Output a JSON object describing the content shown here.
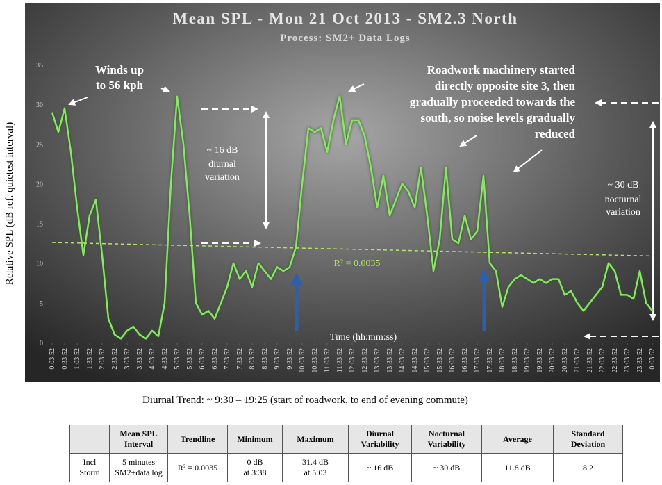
{
  "chart_data": {
    "type": "line",
    "title": "Mean SPL - Mon 21 Oct 2013 - SM2.3 North",
    "subtitle": "Process:  SM2+ Data Logs",
    "y_label": "Relative SPL (dB ref. quietest interval)",
    "x_label": "Time (hh:mm:ss)",
    "series": [
      {
        "color": "#8be36a",
        "x": [
          0.06,
          0.31,
          0.56,
          0.81,
          1.06,
          1.31,
          1.56,
          1.81,
          2.06,
          2.31,
          2.56,
          2.81,
          3.06,
          3.31,
          3.56,
          3.81,
          4.06,
          4.31,
          4.56,
          4.81,
          5.06,
          5.31,
          5.56,
          5.81,
          6.06,
          6.31,
          6.56,
          6.81,
          7.06,
          7.31,
          7.56,
          7.81,
          8.06,
          8.31,
          8.56,
          8.81,
          9.06,
          9.31,
          9.56,
          9.81,
          10.06,
          10.31,
          10.56,
          10.81,
          11.06,
          11.31,
          11.56,
          11.81,
          12.06,
          12.31,
          12.56,
          12.81,
          13.06,
          13.31,
          13.56,
          13.81,
          14.06,
          14.31,
          14.56,
          14.81,
          15.06,
          15.31,
          15.56,
          15.81,
          16.06,
          16.31,
          16.56,
          16.81,
          17.06,
          17.31,
          17.56,
          17.81,
          18.06,
          18.31,
          18.56,
          18.81,
          19.06,
          19.31,
          19.56,
          19.81,
          20.06,
          20.31,
          20.56,
          20.81,
          21.06,
          21.31,
          21.56,
          21.81,
          22.06,
          22.31,
          22.56,
          22.81,
          23.06,
          23.31,
          23.56,
          23.81,
          24.06
        ],
        "values": [
          29,
          26.5,
          29.5,
          24,
          17,
          11,
          16,
          18,
          11,
          3,
          1,
          0.5,
          1.5,
          2,
          1,
          0.5,
          1.5,
          0.8,
          5,
          20,
          31,
          25,
          16,
          5,
          3.5,
          4,
          3,
          5,
          7,
          10,
          8,
          9,
          7,
          10,
          9,
          8,
          9.5,
          9,
          9.5,
          12,
          20,
          27,
          26.5,
          27,
          24,
          28,
          31,
          25,
          28,
          28,
          26,
          22,
          17,
          21,
          16,
          18,
          20,
          19,
          17,
          22,
          16,
          9,
          13,
          22,
          13,
          12.5,
          16,
          13,
          14,
          21,
          10,
          9,
          4.5,
          7,
          8,
          8.5,
          8,
          7.5,
          8,
          7.5,
          8,
          8,
          6,
          6.5,
          5,
          4,
          5,
          6,
          7,
          10,
          9,
          6,
          6,
          5.5,
          9,
          5,
          4
        ]
      }
    ],
    "trendline": {
      "label": "R² = 0.0035",
      "color": "#b5e36a",
      "values": [
        12.6,
        10.9
      ]
    },
    "xlim": [
      0.06,
      24.06
    ],
    "ylim": [
      0,
      35
    ],
    "yticks": [
      0,
      5,
      10,
      15,
      20,
      25,
      30,
      35
    ],
    "xticks": [
      {
        "value": 0.06,
        "label": "0:03:52"
      },
      {
        "value": 0.56,
        "label": "0:33:52"
      },
      {
        "value": 1.06,
        "label": "1:03:52"
      },
      {
        "value": 1.56,
        "label": "1:33:52"
      },
      {
        "value": 2.06,
        "label": "2:03:52"
      },
      {
        "value": 2.56,
        "label": "2:33:52"
      },
      {
        "value": 3.06,
        "label": "3:03:52"
      },
      {
        "value": 3.56,
        "label": "3:33:52"
      },
      {
        "value": 4.06,
        "label": "4:03:52"
      },
      {
        "value": 4.56,
        "label": "4:33:52"
      },
      {
        "value": 5.06,
        "label": "5:03:52"
      },
      {
        "value": 5.56,
        "label": "5:33:52"
      },
      {
        "value": 6.06,
        "label": "6:03:52"
      },
      {
        "value": 6.56,
        "label": "6:33:52"
      },
      {
        "value": 7.06,
        "label": "7:03:52"
      },
      {
        "value": 7.56,
        "label": "7:33:52"
      },
      {
        "value": 8.06,
        "label": "8:03:52"
      },
      {
        "value": 8.56,
        "label": "8:33:52"
      },
      {
        "value": 9.06,
        "label": "9:03:52"
      },
      {
        "value": 9.56,
        "label": "9:33:52"
      },
      {
        "value": 10.06,
        "label": "10:03:52"
      },
      {
        "value": 10.56,
        "label": "10:33:52"
      },
      {
        "value": 11.06,
        "label": "11:03:52"
      },
      {
        "value": 11.56,
        "label": "11:33:52"
      },
      {
        "value": 12.06,
        "label": "12:03:52"
      },
      {
        "value": 12.56,
        "label": "12:33:52"
      },
      {
        "value": 13.06,
        "label": "13:03:52"
      },
      {
        "value": 13.56,
        "label": "13:33:52"
      },
      {
        "value": 14.06,
        "label": "14:03:52"
      },
      {
        "value": 14.56,
        "label": "14:33:52"
      },
      {
        "value": 15.06,
        "label": "15:03:52"
      },
      {
        "value": 15.56,
        "label": "15:33:52"
      },
      {
        "value": 16.06,
        "label": "16:03:52"
      },
      {
        "value": 16.56,
        "label": "16:33:52"
      },
      {
        "value": 17.06,
        "label": "17:03:52"
      },
      {
        "value": 17.56,
        "label": "17:33:52"
      },
      {
        "value": 18.06,
        "label": "18:03:52"
      },
      {
        "value": 18.56,
        "label": "18:33:52"
      },
      {
        "value": 19.06,
        "label": "19:03:52"
      },
      {
        "value": 19.56,
        "label": "19:33:52"
      },
      {
        "value": 20.06,
        "label": "20:03:52"
      },
      {
        "value": 20.56,
        "label": "20:33:52"
      },
      {
        "value": 21.06,
        "label": "21:03:52"
      },
      {
        "value": 21.56,
        "label": "21:33:52"
      },
      {
        "value": 22.06,
        "label": "22:03:52"
      },
      {
        "value": 22.56,
        "label": "22:33:52"
      },
      {
        "value": 23.06,
        "label": "23:03:52"
      },
      {
        "value": 23.56,
        "label": "23:33:52"
      },
      {
        "value": 24.06,
        "label": "0:03:52"
      }
    ],
    "annotations": [
      "Winds up",
      "to 56 kph",
      "Roadwork machinery started",
      "directly opposite site 3, then",
      "gradually proceeded towards the",
      "south, so noise  levels gradually",
      "reduced",
      "~ 16 dB",
      "diurnal",
      "variation",
      "~ 30 dB",
      "nocturnal",
      "variation"
    ],
    "footnote": "Diurnal Trend: ~ 9:30 – 19:25 (start of roadwork, to end of evening commute)"
  },
  "table": {
    "header": [
      "",
      "Mean SPL\nInterval",
      "Trendline",
      "Minimum",
      "Maximum",
      "Diurnal\nVariability",
      "Nocturnal\nVariability",
      "Average",
      "Standard\nDeviation"
    ],
    "rows": [
      [
        "Incl\nStorm",
        "5 minutes\nSM2+data log",
        "R² = 0.0035",
        "0 dB\nat 3:38",
        "31.4 dB\nat 5:03",
        "~ 16 dB",
        "~ 30 dB",
        "11.8 dB",
        "8.2"
      ]
    ]
  }
}
